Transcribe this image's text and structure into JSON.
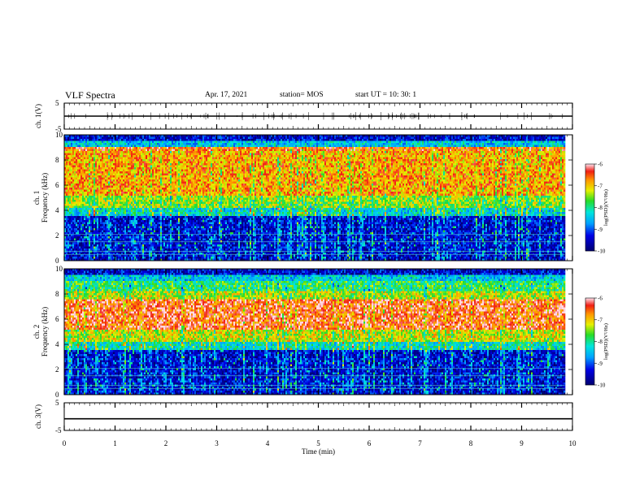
{
  "header": {
    "title": "VLF Spectra",
    "date": "Apr. 17, 2021",
    "station": "station= MOS",
    "start": "start  UT  =   10: 30: 1"
  },
  "chart_data": {
    "type": "heatmap",
    "x_axis": {
      "label": "Time  (min)",
      "range": [
        0,
        10
      ],
      "ticks": [
        0,
        1,
        2,
        3,
        4,
        5,
        6,
        7,
        8,
        9,
        10
      ]
    },
    "panels": [
      {
        "name": "ch1-voltage",
        "type": "line",
        "ylabel": "ch. 1(V)",
        "ylim": [
          -5,
          5
        ],
        "yticks": [
          5,
          -5
        ],
        "level": 0
      },
      {
        "name": "ch1-spectrogram",
        "type": "heatmap",
        "ylabel": "ch. 1",
        "ylabel2": "Frequency  (kHz)",
        "ylim": [
          0,
          10
        ],
        "yticks": [
          0,
          2,
          4,
          6,
          8,
          10
        ],
        "data_end_min": 9.85,
        "colorbar": {
          "label": "log(PSD)(V²/Hz)",
          "range": [
            -10,
            -6
          ],
          "ticks": [
            -6,
            -7,
            -8,
            -9,
            -10
          ]
        }
      },
      {
        "name": "ch2-spectrogram",
        "type": "heatmap",
        "ylabel": "ch. 2",
        "ylabel2": "Frequency  (kHz)",
        "ylim": [
          0,
          10
        ],
        "yticks": [
          0,
          2,
          4,
          6,
          8,
          10
        ],
        "data_end_min": 9.85,
        "colorbar": {
          "label": "log(PSD)(V²/Hz)",
          "range": [
            -10,
            -6
          ],
          "ticks": [
            -6,
            -7,
            -8,
            -9,
            -10
          ]
        }
      },
      {
        "name": "ch3-voltage",
        "type": "line",
        "ylabel": "ch. 3(V)",
        "ylim": [
          -5,
          5
        ],
        "yticks": [
          5,
          -5
        ],
        "level": -0.8
      }
    ]
  }
}
